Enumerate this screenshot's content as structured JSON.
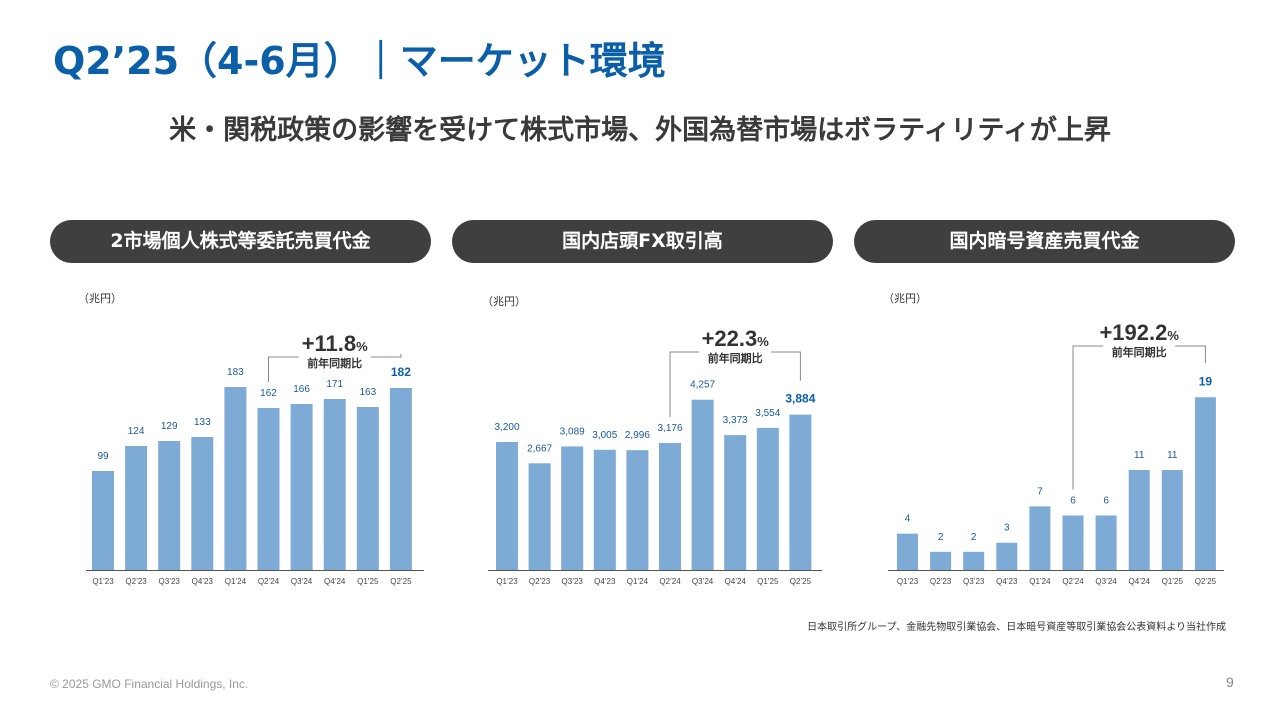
{
  "header": {
    "title": "Q2’25（4-6月）｜マーケット環境",
    "subtitle": "米・関税政策の影響を受けて株式市場、外国為替市場はボラティリティが上昇"
  },
  "colors": {
    "title": "#0a5fa8",
    "bar": "#7eaad6",
    "highlight_label": "#0a5fa8",
    "label": "#1a5a9a",
    "pill_bg": "#3f3f3f"
  },
  "chart_data": [
    {
      "type": "bar",
      "title": "2市場個人株式等委託売買代金",
      "unit": "（兆円）",
      "categories": [
        "Q1’23",
        "Q2’23",
        "Q3’23",
        "Q4’23",
        "Q1’24",
        "Q2’24",
        "Q3’24",
        "Q4’24",
        "Q1’25",
        "Q2’25"
      ],
      "values": [
        99,
        124,
        129,
        133,
        183,
        162,
        166,
        171,
        163,
        182
      ],
      "labels": [
        "99",
        "124",
        "129",
        "133",
        "183",
        "162",
        "166",
        "171",
        "163",
        "182"
      ],
      "ylim": [
        0,
        200
      ],
      "annotation": {
        "value": "+11.8",
        "suffix": "%",
        "label": "前年同期比",
        "from_index": 5,
        "to_index": 9
      }
    },
    {
      "type": "bar",
      "title": "国内店頭FX取引高",
      "unit": "（兆円）",
      "categories": [
        "Q1’23",
        "Q2’23",
        "Q3’23",
        "Q4’23",
        "Q1’24",
        "Q2’24",
        "Q3’24",
        "Q4’24",
        "Q1’25",
        "Q2’25"
      ],
      "values": [
        3200,
        2667,
        3089,
        3005,
        2996,
        3176,
        4257,
        3373,
        3554,
        3884
      ],
      "labels": [
        "3,200",
        "2,667",
        "3,089",
        "3,005",
        "2,996",
        "3,176",
        "4,257",
        "3,373",
        "3,554",
        "3,884"
      ],
      "ylim": [
        0,
        5000
      ],
      "annotation": {
        "value": "+22.3",
        "suffix": "%",
        "label": "前年同期比",
        "from_index": 5,
        "to_index": 9
      }
    },
    {
      "type": "bar",
      "title": "国内暗号資産売買代金",
      "unit": "（兆円）",
      "categories": [
        "Q1’23",
        "Q2’23",
        "Q3’23",
        "Q4’23",
        "Q1’24",
        "Q2’24",
        "Q3’24",
        "Q4’24",
        "Q1’25",
        "Q2’25"
      ],
      "values": [
        4,
        2,
        2,
        3,
        7,
        6,
        6,
        11,
        11,
        19
      ],
      "labels": [
        "4",
        "2",
        "2",
        "3",
        "7",
        "6",
        "6",
        "11",
        "11",
        "19"
      ],
      "ylim": [
        0,
        22
      ],
      "annotation": {
        "value": "+192.2",
        "suffix": "%",
        "label": "前年同期比",
        "from_index": 5,
        "to_index": 9
      }
    }
  ],
  "footer": {
    "source": "日本取引所グループ、金融先物取引業協会、日本暗号資産等取引業協会公表資料より当社作成",
    "copyright": "© 2025 GMO Financial Holdings, Inc.",
    "page": "9"
  }
}
